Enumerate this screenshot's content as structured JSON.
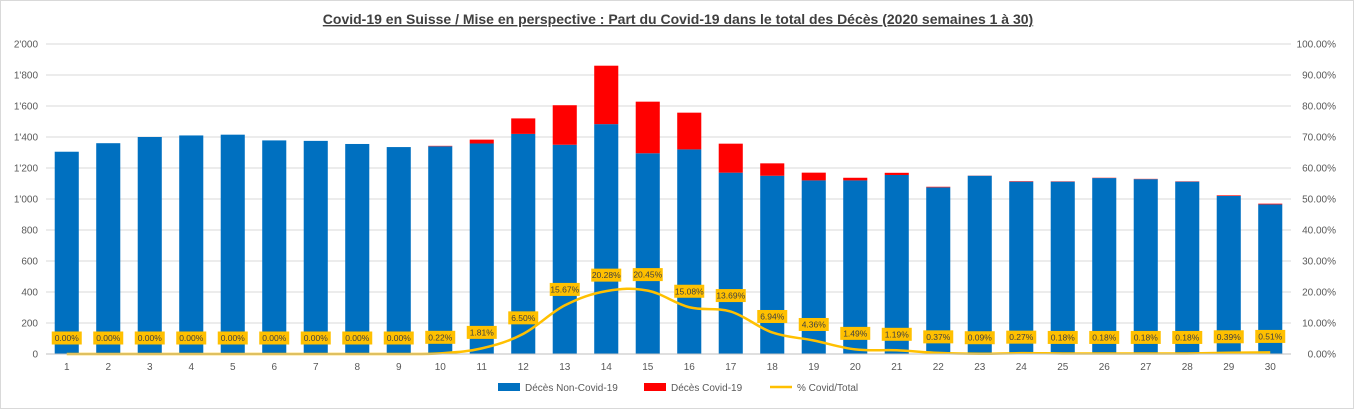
{
  "chart_data": {
    "type": "bar",
    "stacked": true,
    "title": "Covid-19 en Suisse / Mise en perspective : Part du Covid-19 dans le total des Décès (2020 semaines 1 à 30)",
    "categories": [
      "1",
      "2",
      "3",
      "4",
      "5",
      "6",
      "7",
      "8",
      "9",
      "10",
      "11",
      "12",
      "13",
      "14",
      "15",
      "16",
      "17",
      "18",
      "19",
      "20",
      "21",
      "22",
      "23",
      "24",
      "25",
      "26",
      "27",
      "28",
      "29",
      "30"
    ],
    "y_left": {
      "min": 0,
      "max": 2000,
      "step": 200,
      "ticks": [
        "0",
        "200",
        "400",
        "600",
        "800",
        "1'000",
        "1'200",
        "1'400",
        "1'600",
        "1'800",
        "2'000"
      ]
    },
    "y_right": {
      "min": 0,
      "max": 100,
      "step": 10,
      "ticks": [
        "0.00%",
        "10.00%",
        "20.00%",
        "30.00%",
        "40.00%",
        "50.00%",
        "60.00%",
        "70.00%",
        "80.00%",
        "90.00%",
        "100.00%"
      ]
    },
    "series": [
      {
        "name": "Décès Non-Covid-19",
        "type": "bar",
        "axis": "left",
        "color": "#0070c0",
        "values": [
          1305,
          1360,
          1400,
          1410,
          1415,
          1378,
          1375,
          1355,
          1335,
          1340,
          1358,
          1420,
          1350,
          1483,
          1295,
          1320,
          1170,
          1150,
          1120,
          1120,
          1155,
          1075,
          1150,
          1112,
          1112,
          1135,
          1128,
          1112,
          1020,
          965
        ]
      },
      {
        "name": "Décès Covid-19",
        "type": "bar",
        "axis": "left",
        "color": "#ff0000",
        "values": [
          0,
          0,
          0,
          0,
          0,
          0,
          0,
          0,
          0,
          3,
          25,
          100,
          255,
          377,
          333,
          237,
          187,
          80,
          50,
          17,
          14,
          4,
          1,
          3,
          2,
          2,
          2,
          2,
          4,
          5
        ]
      },
      {
        "name": "% Covid/Total",
        "type": "line",
        "axis": "right",
        "color": "#ffc000",
        "values": [
          0,
          0,
          0,
          0,
          0,
          0,
          0,
          0,
          0,
          0.22,
          1.81,
          6.5,
          15.67,
          20.28,
          20.45,
          15.08,
          13.69,
          6.94,
          4.36,
          1.49,
          1.19,
          0.37,
          0.09,
          0.27,
          0.18,
          0.18,
          0.18,
          0.18,
          0.39,
          0.51
        ],
        "labels": [
          "0.00%",
          "0.00%",
          "0.00%",
          "0.00%",
          "0.00%",
          "0.00%",
          "0.00%",
          "0.00%",
          "0.00%",
          "0.22%",
          "1.81%",
          "6.50%",
          "15.67%",
          "20.28%",
          "20.45%",
          "15.08%",
          "13.69%",
          "6.94%",
          "4.36%",
          "1.49%",
          "1.19%",
          "0.37%",
          "0.09%",
          "0.27%",
          "0.18%",
          "0.18%",
          "0.18%",
          "0.18%",
          "0.39%",
          "0.51%"
        ]
      }
    ],
    "grid": true,
    "legend": "bottom-center"
  }
}
